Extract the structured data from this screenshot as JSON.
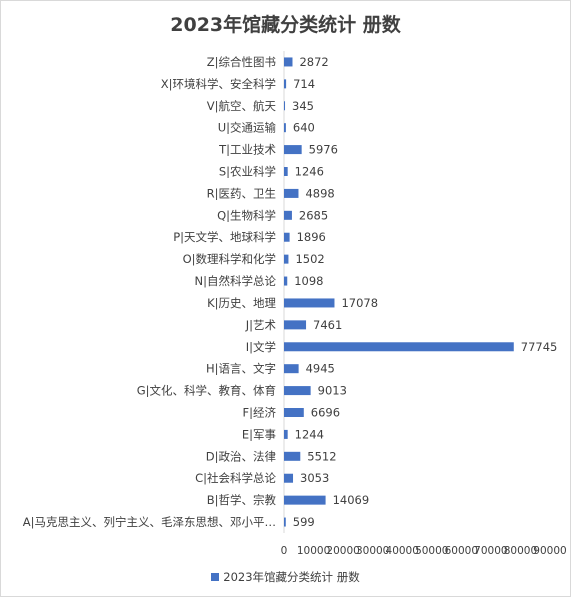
{
  "chart_data": {
    "type": "bar",
    "orientation": "horizontal",
    "title": "2023年馆藏分类统计 册数",
    "categories": [
      "A|马克思主义、列宁主义、毛泽东思想、邓小平…",
      "B|哲学、宗教",
      "C|社会科学总论",
      "D|政治、法律",
      "E|军事",
      "F|经济",
      "G|文化、科学、教育、体育",
      "H|语言、文字",
      "I|文学",
      "J|艺术",
      "K|历史、地理",
      "N|自然科学总论",
      "O|数理科学和化学",
      "P|天文学、地球科学",
      "Q|生物科学",
      "R|医药、卫生",
      "S|农业科学",
      "T|工业技术",
      "U|交通运输",
      "V|航空、航天",
      "X|环境科学、安全科学",
      "Z|综合性图书"
    ],
    "series": [
      {
        "name": "2023年馆藏分类统计 册数",
        "color": "#4472C4",
        "values": [
          599,
          14069,
          3053,
          5512,
          1244,
          6696,
          9013,
          4945,
          77745,
          7461,
          17078,
          1098,
          1502,
          1896,
          2685,
          4898,
          1246,
          5976,
          640,
          345,
          714,
          2872
        ]
      }
    ],
    "x_ticks": [
      "0",
      "10000",
      "20000",
      "30000",
      "40000",
      "50000",
      "60000",
      "70000",
      "80000",
      "90000"
    ],
    "xlim": [
      0,
      90000
    ],
    "legend_position": "bottom",
    "grid": false
  }
}
